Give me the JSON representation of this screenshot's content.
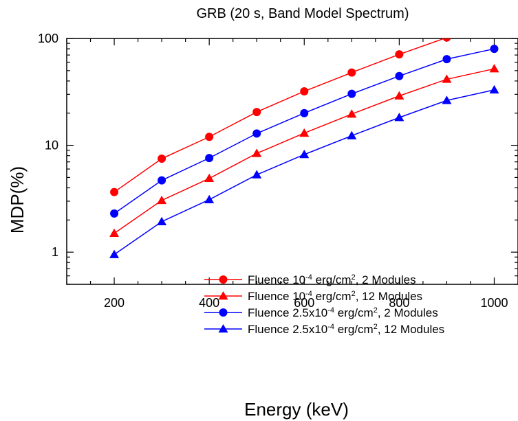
{
  "chart_data": {
    "type": "line",
    "title": "GRB (20 s, Band Model Spectrum)",
    "xlabel": "Energy (keV)",
    "ylabel": "MDP(%)",
    "xlim": [
      100,
      1050
    ],
    "ylim": [
      0.5,
      100
    ],
    "y_scale": "log",
    "x_tick_labels": [
      "200",
      "400",
      "600",
      "800",
      "1000"
    ],
    "y_tick_labels": [
      "1",
      "10",
      "100"
    ],
    "grid": false,
    "legend_position": "bottom-right",
    "x": [
      200,
      300,
      400,
      500,
      600,
      700,
      800,
      900,
      1000
    ],
    "series": [
      {
        "name": "Fluence 10^-4 erg/cm^2, 2 Modules",
        "color": "#ff0000",
        "marker": "circle",
        "x": [
          200,
          300,
          400,
          500,
          600,
          700,
          800,
          900
        ],
        "values": [
          3.65,
          7.5,
          12.0,
          20.5,
          32.0,
          48.0,
          71.0,
          102.0
        ]
      },
      {
        "name": "Fluence 10^-4 erg/cm^2, 12 Modules",
        "color": "#ff0000",
        "marker": "triangle",
        "x": [
          200,
          300,
          400,
          500,
          600,
          700,
          800,
          900,
          1000
        ],
        "values": [
          1.5,
          3.05,
          4.9,
          8.4,
          13.0,
          19.6,
          29.0,
          41.5,
          52.0
        ]
      },
      {
        "name": "Fluence 2.5x10^-4 erg/cm^2, 2 Modules",
        "color": "#0000ff",
        "marker": "circle",
        "x": [
          200,
          300,
          400,
          500,
          600,
          700,
          800,
          900,
          1000
        ],
        "values": [
          2.3,
          4.7,
          7.6,
          12.9,
          20.0,
          30.3,
          44.5,
          64.0,
          80.0
        ]
      },
      {
        "name": "Fluence 2.5x10^-4 erg/cm^2, 12 Modules",
        "color": "#0000ff",
        "marker": "triangle",
        "x": [
          200,
          300,
          400,
          500,
          600,
          700,
          800,
          900,
          1000
        ],
        "values": [
          0.95,
          1.93,
          3.1,
          5.3,
          8.2,
          12.3,
          18.2,
          26.3,
          33.0
        ]
      }
    ],
    "legend": [
      {
        "prefix": "Fluence 10",
        "sup1": "-4",
        "mid": " erg/cm",
        "sup2": "2",
        "suffix": ", 2 Modules"
      },
      {
        "prefix": "Fluence 10",
        "sup1": "-4",
        "mid": " erg/cm",
        "sup2": "2",
        "suffix": ", 12 Modules"
      },
      {
        "prefix": "Fluence 2.5x10",
        "sup1": "-4",
        "mid": " erg/cm",
        "sup2": "2",
        "suffix": ", 2 Modules"
      },
      {
        "prefix": "Fluence 2.5x10",
        "sup1": "-4",
        "mid": " erg/cm",
        "sup2": "2",
        "suffix": ", 12 Modules"
      }
    ]
  }
}
